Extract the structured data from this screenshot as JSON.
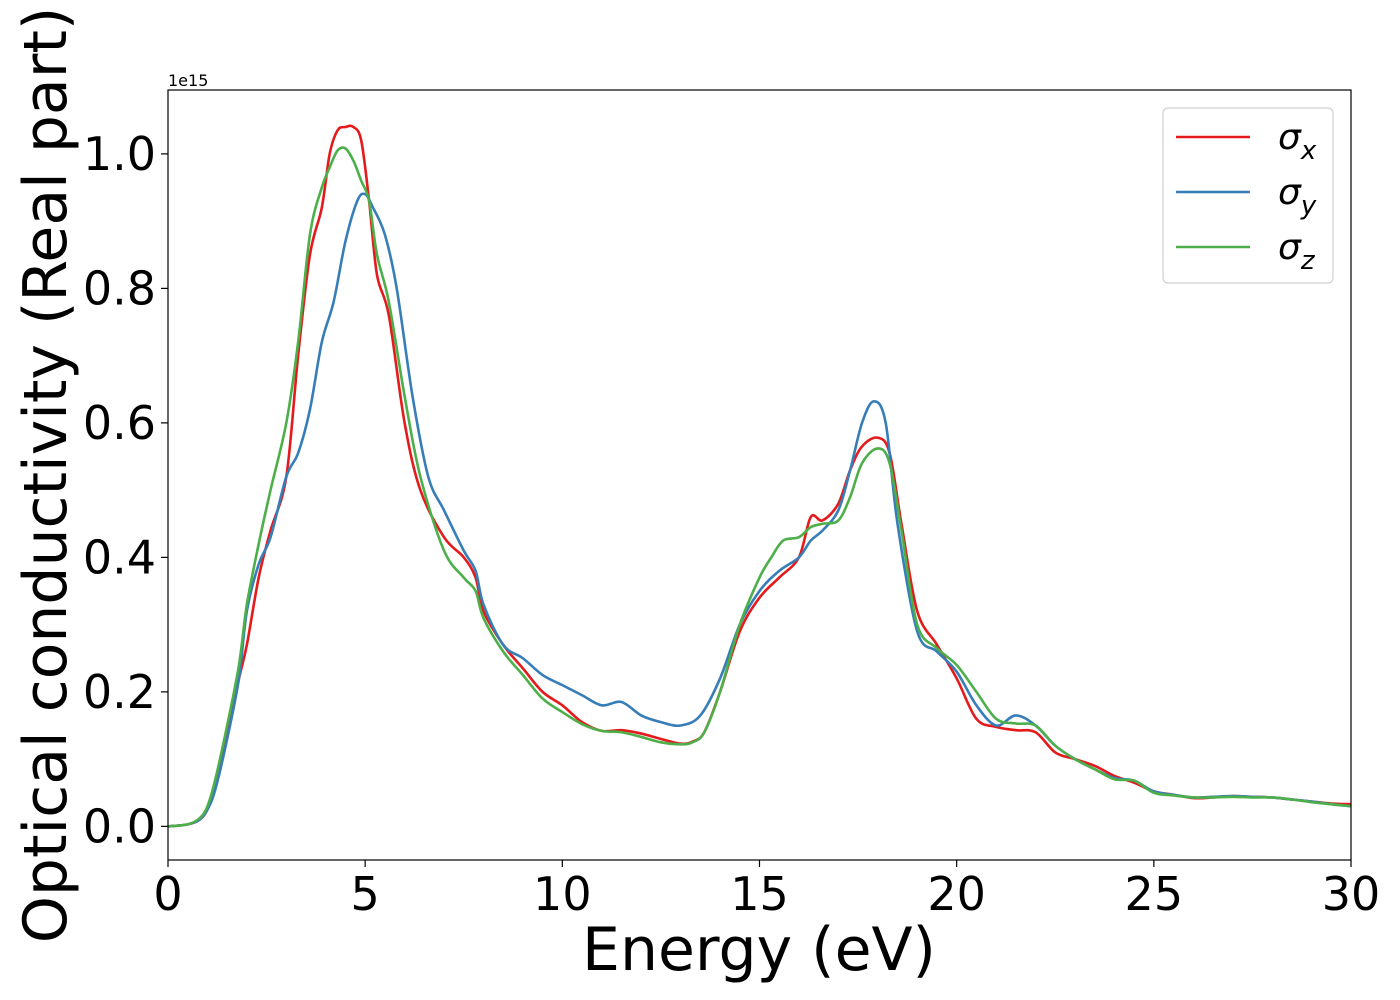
{
  "chart_data": {
    "type": "line",
    "title": "",
    "xlabel": "Energy (eV)",
    "ylabel": "Optical conductivity (Real part)",
    "y_offset_label": "1e15",
    "xlim": [
      0,
      30
    ],
    "ylim": [
      -0.05,
      1.095
    ],
    "x_ticks": [
      0,
      5,
      10,
      15,
      20,
      25,
      30
    ],
    "x_tick_labels": [
      "0",
      "5",
      "10",
      "15",
      "20",
      "25",
      "30"
    ],
    "y_ticks": [
      0.0,
      0.2,
      0.4,
      0.6,
      0.8,
      1.0
    ],
    "y_tick_labels": [
      "0.0",
      "0.2",
      "0.4",
      "0.6",
      "0.8",
      "1.0"
    ],
    "grid": false,
    "legend_position": "top-right",
    "series": [
      {
        "name": "σx",
        "legend_base": "σ",
        "legend_sub": "x",
        "color": "#e41a1c",
        "x": [
          0,
          0.5,
          0.8,
          1.0,
          1.2,
          1.5,
          1.8,
          2.0,
          2.3,
          2.6,
          3.0,
          3.3,
          3.6,
          3.9,
          4.1,
          4.3,
          4.5,
          4.7,
          4.9,
          5.1,
          5.3,
          5.6,
          6.0,
          6.4,
          7.0,
          7.5,
          7.8,
          8.0,
          8.5,
          9.0,
          9.5,
          10.0,
          10.5,
          11.0,
          11.5,
          12.0,
          12.5,
          13.0,
          13.3,
          13.6,
          14.0,
          14.5,
          15.0,
          15.5,
          16.0,
          16.3,
          16.6,
          17.0,
          17.3,
          17.6,
          18.0,
          18.3,
          18.6,
          19.0,
          19.5,
          20.0,
          20.5,
          21.0,
          21.5,
          22.0,
          22.5,
          23.0,
          23.5,
          24.0,
          24.5,
          25.0,
          25.5,
          26.0,
          26.5,
          27.0,
          27.5,
          28.0,
          28.5,
          29.0,
          29.5,
          30.0
        ],
        "values": [
          0.0,
          0.003,
          0.01,
          0.025,
          0.06,
          0.14,
          0.22,
          0.27,
          0.37,
          0.44,
          0.52,
          0.7,
          0.85,
          0.92,
          1.0,
          1.035,
          1.04,
          1.04,
          1.02,
          0.93,
          0.82,
          0.76,
          0.6,
          0.5,
          0.43,
          0.4,
          0.37,
          0.32,
          0.27,
          0.235,
          0.2,
          0.18,
          0.155,
          0.142,
          0.143,
          0.138,
          0.13,
          0.123,
          0.126,
          0.14,
          0.2,
          0.29,
          0.34,
          0.37,
          0.4,
          0.46,
          0.455,
          0.48,
          0.53,
          0.565,
          0.578,
          0.555,
          0.45,
          0.32,
          0.27,
          0.22,
          0.16,
          0.148,
          0.143,
          0.14,
          0.11,
          0.1,
          0.09,
          0.075,
          0.065,
          0.052,
          0.047,
          0.042,
          0.043,
          0.045,
          0.044,
          0.043,
          0.04,
          0.037,
          0.034,
          0.033
        ]
      },
      {
        "name": "σy",
        "legend_base": "σ",
        "legend_sub": "y",
        "color": "#377eb8",
        "x": [
          0,
          0.5,
          0.8,
          1.0,
          1.2,
          1.5,
          1.8,
          2.0,
          2.3,
          2.6,
          3.0,
          3.3,
          3.6,
          3.9,
          4.2,
          4.5,
          4.8,
          5.0,
          5.2,
          5.5,
          5.8,
          6.2,
          6.6,
          7.0,
          7.5,
          7.8,
          8.0,
          8.5,
          9.0,
          9.5,
          10.0,
          10.5,
          11.0,
          11.5,
          12.0,
          12.5,
          13.0,
          13.5,
          14.0,
          14.5,
          15.0,
          15.5,
          16.0,
          16.3,
          16.6,
          17.0,
          17.3,
          17.6,
          17.9,
          18.2,
          18.5,
          19.0,
          19.5,
          20.0,
          20.5,
          21.0,
          21.5,
          22.0,
          22.5,
          23.0,
          23.5,
          24.0,
          24.5,
          25.0,
          25.5,
          26.0,
          26.5,
          27.0,
          27.5,
          28.0,
          28.5,
          29.0,
          29.5,
          30.0
        ],
        "values": [
          0.0,
          0.003,
          0.01,
          0.025,
          0.055,
          0.13,
          0.22,
          0.32,
          0.39,
          0.43,
          0.52,
          0.555,
          0.62,
          0.72,
          0.78,
          0.87,
          0.93,
          0.94,
          0.92,
          0.88,
          0.8,
          0.64,
          0.52,
          0.47,
          0.41,
          0.38,
          0.33,
          0.27,
          0.25,
          0.225,
          0.21,
          0.195,
          0.18,
          0.185,
          0.165,
          0.155,
          0.15,
          0.165,
          0.22,
          0.3,
          0.35,
          0.38,
          0.4,
          0.425,
          0.44,
          0.47,
          0.53,
          0.6,
          0.632,
          0.6,
          0.45,
          0.29,
          0.26,
          0.23,
          0.18,
          0.15,
          0.165,
          0.15,
          0.12,
          0.1,
          0.085,
          0.072,
          0.068,
          0.052,
          0.047,
          0.043,
          0.044,
          0.045,
          0.044,
          0.043,
          0.04,
          0.037,
          0.033,
          0.03
        ]
      },
      {
        "name": "σz",
        "legend_base": "σ",
        "legend_sub": "z",
        "color": "#4daf4a",
        "x": [
          0,
          0.5,
          0.8,
          1.0,
          1.2,
          1.5,
          1.8,
          2.0,
          2.3,
          2.6,
          3.0,
          3.3,
          3.6,
          3.9,
          4.1,
          4.3,
          4.5,
          4.7,
          4.9,
          5.1,
          5.3,
          5.6,
          6.0,
          6.4,
          7.0,
          7.5,
          7.8,
          8.0,
          8.5,
          9.0,
          9.5,
          10.0,
          10.5,
          11.0,
          11.5,
          12.0,
          12.5,
          13.0,
          13.3,
          13.6,
          14.0,
          14.5,
          15.0,
          15.3,
          15.6,
          16.0,
          16.3,
          16.6,
          17.0,
          17.3,
          17.6,
          18.0,
          18.3,
          18.6,
          19.0,
          19.5,
          20.0,
          20.5,
          21.0,
          21.5,
          22.0,
          22.5,
          23.0,
          23.5,
          24.0,
          24.5,
          25.0,
          25.5,
          26.0,
          26.5,
          27.0,
          27.5,
          28.0,
          28.5,
          29.0,
          29.5,
          30.0
        ],
        "values": [
          0.0,
          0.003,
          0.012,
          0.03,
          0.07,
          0.15,
          0.24,
          0.33,
          0.42,
          0.5,
          0.6,
          0.72,
          0.88,
          0.95,
          0.98,
          1.005,
          1.008,
          0.99,
          0.96,
          0.93,
          0.85,
          0.78,
          0.64,
          0.52,
          0.41,
          0.37,
          0.35,
          0.31,
          0.26,
          0.225,
          0.19,
          0.17,
          0.152,
          0.142,
          0.14,
          0.133,
          0.125,
          0.122,
          0.125,
          0.14,
          0.2,
          0.3,
          0.37,
          0.4,
          0.425,
          0.43,
          0.445,
          0.45,
          0.455,
          0.49,
          0.54,
          0.562,
          0.54,
          0.44,
          0.3,
          0.265,
          0.24,
          0.2,
          0.16,
          0.153,
          0.15,
          0.12,
          0.1,
          0.085,
          0.07,
          0.068,
          0.05,
          0.046,
          0.043,
          0.043,
          0.044,
          0.043,
          0.043,
          0.04,
          0.036,
          0.033,
          0.03
        ]
      }
    ]
  }
}
